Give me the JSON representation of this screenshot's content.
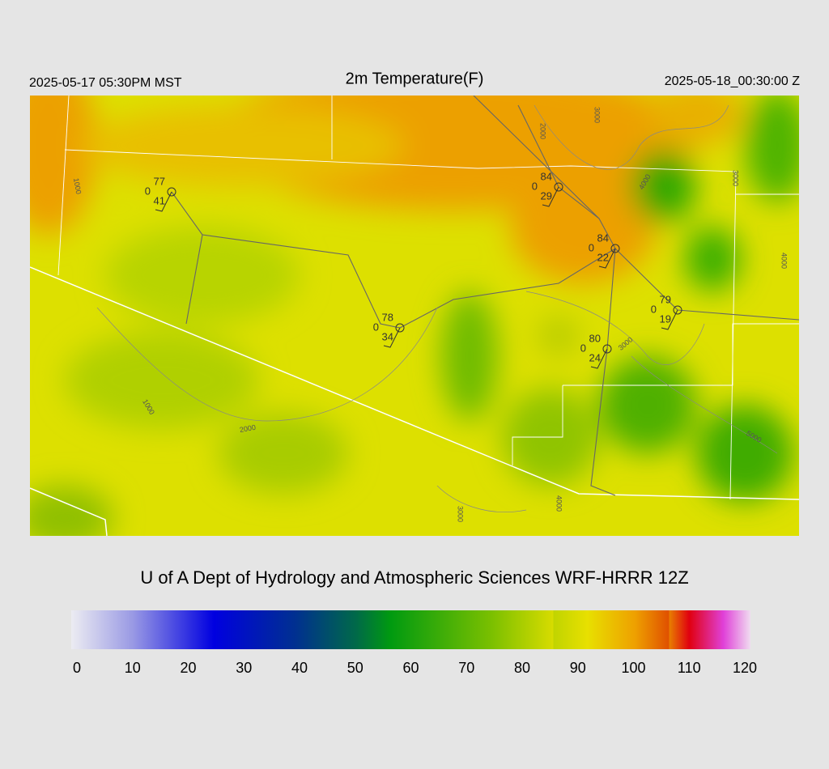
{
  "header": {
    "left": "2025-05-17 05:30PM MST",
    "title": "2m Temperature(F)",
    "right": "2025-05-18_00:30:00 Z"
  },
  "stations": [
    {
      "temperature": 77,
      "pressure_change": 0,
      "dewpoint": 41
    },
    {
      "temperature": 84,
      "pressure_change": 0,
      "dewpoint": 29
    },
    {
      "temperature": 84,
      "pressure_change": 0,
      "dewpoint": 22
    },
    {
      "temperature": 78,
      "pressure_change": 0,
      "dewpoint": 34
    },
    {
      "temperature": 79,
      "pressure_change": 0,
      "dewpoint": 19
    },
    {
      "temperature": 80,
      "pressure_change": 0,
      "dewpoint": 24
    }
  ],
  "contour_labels": [
    "1000",
    "2000",
    "3000",
    "4000",
    "3000",
    "4000",
    "3000",
    "1000",
    "2000",
    "5000",
    "3000",
    "4000"
  ],
  "footer": "U of A Dept of Hydrology and Atmospheric Sciences WRF-HRRR 12Z",
  "colorbar": {
    "ticks": [
      0,
      10,
      20,
      30,
      40,
      50,
      60,
      70,
      80,
      90,
      100,
      110,
      120
    ]
  }
}
